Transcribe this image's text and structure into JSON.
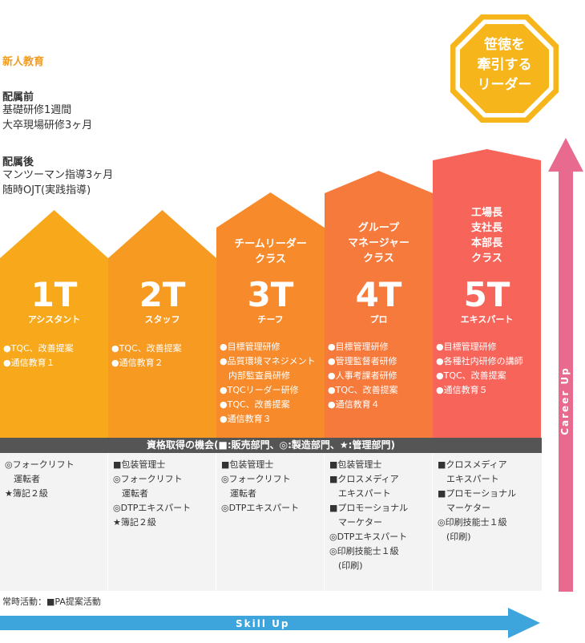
{
  "intro": {
    "title": "新人教育",
    "before_heading": "配属前",
    "before_lines": [
      "基礎研修1週間",
      "大卒現場研修3ヶ月"
    ],
    "after_heading": "配属後",
    "after_lines": [
      "マンツーマン指導3ヶ月",
      "随時OJT(実践指導)"
    ]
  },
  "goal": {
    "lines": [
      "笹徳を",
      "牽引する",
      "リーダー"
    ],
    "color": "#f5b51b"
  },
  "steps": [
    {
      "level": "1T",
      "sub": "アシスタント",
      "role": [],
      "color": "#f8a81b",
      "items": [
        "●TQC、改善提案",
        "●通信教育１"
      ]
    },
    {
      "level": "2T",
      "sub": "スタッフ",
      "role": [],
      "color": "#f79a22",
      "items": [
        "●TQC、改善提案",
        "●通信教育２"
      ]
    },
    {
      "level": "3T",
      "sub": "チーフ",
      "role": [
        "チームリーダー",
        "クラス"
      ],
      "color": "#f78b2c",
      "items": [
        "●目標管理研修",
        "●品質環境マネジメント",
        "　内部監査員研修",
        "●TQCリーダー研修",
        "●TQC、改善提案",
        "●通信教育３"
      ]
    },
    {
      "level": "4T",
      "sub": "プロ",
      "role": [
        "グループ",
        "マネージャー",
        "クラス"
      ],
      "color": "#f77a3d",
      "items": [
        "●目標管理研修",
        "●管理監督者研修",
        "●人事考課者研修",
        "●TQC、改善提案",
        "●通信教育４"
      ]
    },
    {
      "level": "5T",
      "sub": "エキスパート",
      "role": [
        "工場長",
        "支社長",
        "本部長",
        "クラス"
      ],
      "color": "#f6645a",
      "items": [
        "●目標管理研修",
        "●各種社内研修の講師",
        "●TQC、改善提案",
        "●通信教育５"
      ]
    }
  ],
  "qualification": {
    "title": "資格取得の機会(■:販売部門、◎:製造部門、★:管理部門)",
    "columns": [
      [
        "◎フォークリフト",
        "　運転者",
        "★簿記２級"
      ],
      [
        "■包装管理士",
        "◎フォークリフト",
        "　運転者",
        "◎DTPエキスパート",
        "★簿記２級"
      ],
      [
        "■包装管理士",
        "◎フォークリフト",
        "　運転者",
        "◎DTPエキスパート"
      ],
      [
        "■包装管理士",
        "■クロスメディア",
        "　エキスパート",
        "■プロモーショナル",
        "　マーケター",
        "◎DTPエキスパート",
        "◎印刷技能士１級",
        "　(印刷)"
      ],
      [
        "■クロスメディア",
        "　エキスパート",
        "■プロモーショナル",
        "　マーケター",
        "◎印刷技能士１級",
        "　(印刷)"
      ]
    ]
  },
  "footnote": "常時活動：■PA提案活動",
  "skill_up": "Skill Up",
  "career_up": "Career Up",
  "colors": {
    "skill_arrow": "#3ea4dc",
    "career_arrow": "#e96a8f",
    "bar": "#555555",
    "column_bg": "#f3f3f3"
  }
}
